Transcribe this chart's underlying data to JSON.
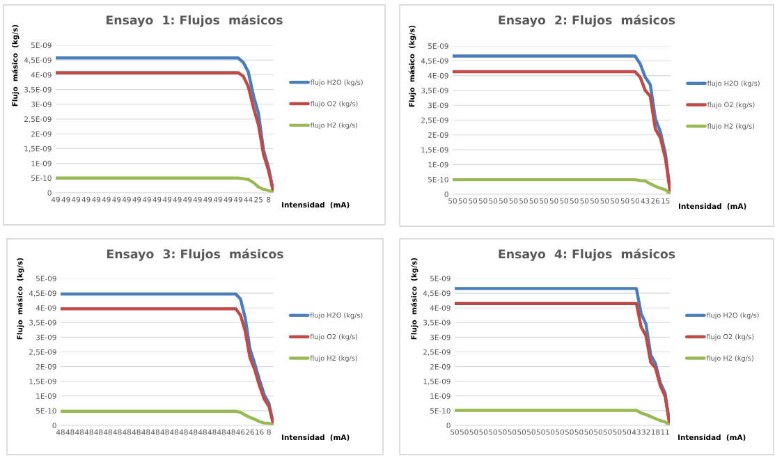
{
  "chart_data": [
    {
      "type": "line",
      "title": "Ensayo  1: Flujos  másicos",
      "xlabel": "Intensidad  (mA)",
      "ylabel": "Flujo  másico  (kg/s)",
      "grid": "y",
      "legend": "right",
      "ylim": [
        0,
        5e-09
      ],
      "yticks": [
        0,
        {
          "value": 5e-10,
          "label": "5E-10"
        },
        {
          "value": 1e-09,
          "label": "1E-09"
        },
        {
          "value": 1.5e-09,
          "label": "1,5E-09"
        },
        {
          "value": 2e-09,
          "label": "2E-09"
        },
        {
          "value": 2.5e-09,
          "label": "2,5E-09"
        },
        {
          "value": 3e-09,
          "label": "3E-09"
        },
        {
          "value": 3.5e-09,
          "label": "3,5E-09"
        },
        {
          "value": 4e-09,
          "label": "4E-09"
        },
        {
          "value": 4.5e-09,
          "label": "4,5E-09"
        },
        {
          "value": 5e-09,
          "label": "5E-09"
        }
      ],
      "categories": [
        "49",
        null,
        "49",
        null,
        "49",
        null,
        "49",
        null,
        "49",
        null,
        "49",
        null,
        "49",
        null,
        "49",
        null,
        "49",
        null,
        "49",
        null,
        "49",
        null,
        "49",
        null,
        "49",
        null,
        "49",
        null,
        "49",
        null,
        "49",
        null,
        "49",
        null,
        "49",
        null,
        "49",
        null,
        "44",
        null,
        "25",
        null,
        "8",
        null
      ],
      "series": [
        {
          "name": "flujo H2O (kg/s)",
          "color": "#4a7ebb",
          "values": [
            4.57e-09,
            4.57e-09,
            4.57e-09,
            4.57e-09,
            4.57e-09,
            4.57e-09,
            4.57e-09,
            4.57e-09,
            4.57e-09,
            4.57e-09,
            4.57e-09,
            4.57e-09,
            4.57e-09,
            4.57e-09,
            4.57e-09,
            4.57e-09,
            4.57e-09,
            4.57e-09,
            4.57e-09,
            4.57e-09,
            4.57e-09,
            4.57e-09,
            4.57e-09,
            4.57e-09,
            4.57e-09,
            4.57e-09,
            4.57e-09,
            4.57e-09,
            4.57e-09,
            4.57e-09,
            4.57e-09,
            4.57e-09,
            4.57e-09,
            4.57e-09,
            4.57e-09,
            4.57e-09,
            4.57e-09,
            4.42e-09,
            4.1e-09,
            3.3e-09,
            2.7e-09,
            1.45e-09,
            8.5e-10,
            0
          ]
        },
        {
          "name": "flujo O2 (kg/s)",
          "color": "#be4b48",
          "values": [
            4.07e-09,
            4.07e-09,
            4.07e-09,
            4.07e-09,
            4.07e-09,
            4.07e-09,
            4.07e-09,
            4.07e-09,
            4.07e-09,
            4.07e-09,
            4.07e-09,
            4.07e-09,
            4.07e-09,
            4.07e-09,
            4.07e-09,
            4.07e-09,
            4.07e-09,
            4.07e-09,
            4.07e-09,
            4.07e-09,
            4.07e-09,
            4.07e-09,
            4.07e-09,
            4.07e-09,
            4.07e-09,
            4.07e-09,
            4.07e-09,
            4.07e-09,
            4.07e-09,
            4.07e-09,
            4.07e-09,
            4.07e-09,
            4.07e-09,
            4.07e-09,
            4.07e-09,
            4.07e-09,
            4.07e-09,
            3.95e-09,
            3.6e-09,
            2.9e-09,
            2.3e-09,
            1.3e-09,
            7.5e-10,
            0
          ]
        },
        {
          "name": "flujo H2 (kg/s)",
          "color": "#98b954",
          "values": [
            5e-10,
            5e-10,
            5e-10,
            5e-10,
            5e-10,
            5e-10,
            5e-10,
            5e-10,
            5e-10,
            5e-10,
            5e-10,
            5e-10,
            5e-10,
            5e-10,
            5e-10,
            5e-10,
            5e-10,
            5e-10,
            5e-10,
            5e-10,
            5e-10,
            5e-10,
            5e-10,
            5e-10,
            5e-10,
            5e-10,
            5e-10,
            5e-10,
            5e-10,
            5e-10,
            5e-10,
            5e-10,
            5e-10,
            5e-10,
            5e-10,
            5e-10,
            5e-10,
            4.8e-10,
            4.5e-10,
            3.5e-10,
            2e-10,
            1.2e-10,
            8e-11,
            0
          ]
        }
      ]
    },
    {
      "type": "line",
      "title": "Ensayo  2: Flujos  másicos",
      "xlabel": "Intensidad  (mA)",
      "ylabel": "Flujo  másico  (kg/s)",
      "grid": "y",
      "legend": "right",
      "ylim": [
        0,
        5e-09
      ],
      "yticks": [
        0,
        {
          "value": 5e-10,
          "label": "5E-10"
        },
        {
          "value": 1e-09,
          "label": "1E-09"
        },
        {
          "value": 1.5e-09,
          "label": "1,5E-09"
        },
        {
          "value": 2e-09,
          "label": "2E-09"
        },
        {
          "value": 2.5e-09,
          "label": "2,5E-09"
        },
        {
          "value": 3e-09,
          "label": "3E-09"
        },
        {
          "value": 3.5e-09,
          "label": "3,5E-09"
        },
        {
          "value": 4e-09,
          "label": "4E-09"
        },
        {
          "value": 4.5e-09,
          "label": "4,5E-09"
        },
        {
          "value": 5e-09,
          "label": "5E-09"
        }
      ],
      "categories": [
        "50",
        null,
        "50",
        null,
        "50",
        null,
        "50",
        null,
        "50",
        null,
        "50",
        null,
        "50",
        null,
        "50",
        null,
        "50",
        null,
        "50",
        null,
        "50",
        null,
        "50",
        null,
        "50",
        null,
        "50",
        null,
        "50",
        null,
        "50",
        null,
        "50",
        null,
        "50",
        null,
        "50",
        null,
        "43",
        null,
        "26",
        null,
        "15",
        null
      ],
      "series": [
        {
          "name": "flujo H2O (kg/s)",
          "color": "#4a7ebb",
          "values": [
            4.66e-09,
            4.66e-09,
            4.66e-09,
            4.66e-09,
            4.66e-09,
            4.66e-09,
            4.66e-09,
            4.66e-09,
            4.66e-09,
            4.66e-09,
            4.66e-09,
            4.66e-09,
            4.66e-09,
            4.66e-09,
            4.66e-09,
            4.66e-09,
            4.66e-09,
            4.66e-09,
            4.66e-09,
            4.66e-09,
            4.66e-09,
            4.66e-09,
            4.66e-09,
            4.66e-09,
            4.66e-09,
            4.66e-09,
            4.66e-09,
            4.66e-09,
            4.66e-09,
            4.66e-09,
            4.66e-09,
            4.66e-09,
            4.66e-09,
            4.66e-09,
            4.66e-09,
            4.66e-09,
            4.66e-09,
            4.4e-09,
            3.95e-09,
            3.7e-09,
            2.55e-09,
            2.1e-09,
            1.35e-09,
            0
          ]
        },
        {
          "name": "flujo O2 (kg/s)",
          "color": "#be4b48",
          "values": [
            4.13e-09,
            4.13e-09,
            4.13e-09,
            4.13e-09,
            4.13e-09,
            4.13e-09,
            4.13e-09,
            4.13e-09,
            4.13e-09,
            4.13e-09,
            4.13e-09,
            4.13e-09,
            4.13e-09,
            4.13e-09,
            4.13e-09,
            4.13e-09,
            4.13e-09,
            4.13e-09,
            4.13e-09,
            4.13e-09,
            4.13e-09,
            4.13e-09,
            4.13e-09,
            4.13e-09,
            4.13e-09,
            4.13e-09,
            4.13e-09,
            4.13e-09,
            4.13e-09,
            4.13e-09,
            4.13e-09,
            4.13e-09,
            4.13e-09,
            4.13e-09,
            4.13e-09,
            4.13e-09,
            4.13e-09,
            3.95e-09,
            3.5e-09,
            3.3e-09,
            2.2e-09,
            1.9e-09,
            1.2e-09,
            0
          ]
        },
        {
          "name": "flujo H2 (kg/s)",
          "color": "#98b954",
          "values": [
            4.9e-10,
            4.9e-10,
            4.9e-10,
            4.9e-10,
            4.9e-10,
            4.9e-10,
            4.9e-10,
            4.9e-10,
            4.9e-10,
            4.9e-10,
            4.9e-10,
            4.9e-10,
            4.9e-10,
            4.9e-10,
            4.9e-10,
            4.9e-10,
            4.9e-10,
            4.9e-10,
            4.9e-10,
            4.9e-10,
            4.9e-10,
            4.9e-10,
            4.9e-10,
            4.9e-10,
            4.9e-10,
            4.9e-10,
            4.9e-10,
            4.9e-10,
            4.9e-10,
            4.9e-10,
            4.9e-10,
            4.9e-10,
            4.9e-10,
            4.9e-10,
            4.9e-10,
            4.9e-10,
            4.9e-10,
            4.6e-10,
            4.5e-10,
            3.5e-10,
            2.7e-10,
            2e-10,
            1.5e-10,
            0
          ]
        }
      ]
    },
    {
      "type": "line",
      "title": "Ensayo  3: Flujos  másicos",
      "xlabel": "Intensidad  (mA)",
      "ylabel": "Flujo  másico  (kg/s)",
      "grid": "y",
      "legend": "right",
      "ylim": [
        0,
        5e-09
      ],
      "yticks": [
        0,
        {
          "value": 5e-10,
          "label": "5E-10"
        },
        {
          "value": 1e-09,
          "label": "1E-09"
        },
        {
          "value": 1.5e-09,
          "label": "1,5E-09"
        },
        {
          "value": 2e-09,
          "label": "2E-09"
        },
        {
          "value": 2.5e-09,
          "label": "2,5E-09"
        },
        {
          "value": 3e-09,
          "label": "3E-09"
        },
        {
          "value": 3.5e-09,
          "label": "3,5E-09"
        },
        {
          "value": 4e-09,
          "label": "4E-09"
        },
        {
          "value": 4.5e-09,
          "label": "4,5E-09"
        },
        {
          "value": 5e-09,
          "label": "5E-09"
        }
      ],
      "categories": [
        "48",
        null,
        "48",
        null,
        "48",
        null,
        "48",
        null,
        "48",
        null,
        "48",
        null,
        "48",
        null,
        "48",
        null,
        "48",
        null,
        "48",
        null,
        "48",
        null,
        "48",
        null,
        "48",
        null,
        "48",
        null,
        "48",
        null,
        "48",
        null,
        "48",
        null,
        "48",
        null,
        "48",
        null,
        "46",
        null,
        "26",
        null,
        "16",
        null,
        "8",
        null
      ],
      "series": [
        {
          "name": "flujo H2O (kg/s)",
          "color": "#4a7ebb",
          "values": [
            4.47e-09,
            4.47e-09,
            4.47e-09,
            4.47e-09,
            4.47e-09,
            4.47e-09,
            4.47e-09,
            4.47e-09,
            4.47e-09,
            4.47e-09,
            4.47e-09,
            4.47e-09,
            4.47e-09,
            4.47e-09,
            4.47e-09,
            4.47e-09,
            4.47e-09,
            4.47e-09,
            4.47e-09,
            4.47e-09,
            4.47e-09,
            4.47e-09,
            4.47e-09,
            4.47e-09,
            4.47e-09,
            4.47e-09,
            4.47e-09,
            4.47e-09,
            4.47e-09,
            4.47e-09,
            4.47e-09,
            4.47e-09,
            4.47e-09,
            4.47e-09,
            4.47e-09,
            4.47e-09,
            4.47e-09,
            4.47e-09,
            4.3e-09,
            3.65e-09,
            2.6e-09,
            2.1e-09,
            1.55e-09,
            1.05e-09,
            7.5e-10,
            0
          ]
        },
        {
          "name": "flujo O2 (kg/s)",
          "color": "#be4b48",
          "values": [
            3.97e-09,
            3.97e-09,
            3.97e-09,
            3.97e-09,
            3.97e-09,
            3.97e-09,
            3.97e-09,
            3.97e-09,
            3.97e-09,
            3.97e-09,
            3.97e-09,
            3.97e-09,
            3.97e-09,
            3.97e-09,
            3.97e-09,
            3.97e-09,
            3.97e-09,
            3.97e-09,
            3.97e-09,
            3.97e-09,
            3.97e-09,
            3.97e-09,
            3.97e-09,
            3.97e-09,
            3.97e-09,
            3.97e-09,
            3.97e-09,
            3.97e-09,
            3.97e-09,
            3.97e-09,
            3.97e-09,
            3.97e-09,
            3.97e-09,
            3.97e-09,
            3.97e-09,
            3.97e-09,
            3.97e-09,
            3.97e-09,
            3.75e-09,
            3.2e-09,
            2.3e-09,
            1.9e-09,
            1.35e-09,
            9e-10,
            6.5e-10,
            0
          ]
        },
        {
          "name": "flujo H2 (kg/s)",
          "color": "#98b954",
          "values": [
            4.8e-10,
            4.8e-10,
            4.8e-10,
            4.8e-10,
            4.8e-10,
            4.8e-10,
            4.8e-10,
            4.8e-10,
            4.8e-10,
            4.8e-10,
            4.8e-10,
            4.8e-10,
            4.8e-10,
            4.8e-10,
            4.8e-10,
            4.8e-10,
            4.8e-10,
            4.8e-10,
            4.8e-10,
            4.8e-10,
            4.8e-10,
            4.8e-10,
            4.8e-10,
            4.8e-10,
            4.8e-10,
            4.8e-10,
            4.8e-10,
            4.8e-10,
            4.8e-10,
            4.8e-10,
            4.8e-10,
            4.8e-10,
            4.8e-10,
            4.8e-10,
            4.8e-10,
            4.8e-10,
            4.8e-10,
            4.8e-10,
            4.4e-10,
            3.5e-10,
            2.7e-10,
            2.1e-10,
            1.3e-10,
            8e-11,
            7e-11,
            0
          ]
        }
      ]
    },
    {
      "type": "line",
      "title": "Ensayo  4: Flujos  másicos",
      "xlabel": "Intensidad  (mA)",
      "ylabel": "Flujo  másico  (kg/s)",
      "grid": "y",
      "legend": "right",
      "ylim": [
        0,
        5e-09
      ],
      "yticks": [
        0,
        {
          "value": 5e-10,
          "label": "5E-10"
        },
        {
          "value": 1e-09,
          "label": "1E-09"
        },
        {
          "value": 1.5e-09,
          "label": "1,5E-09"
        },
        {
          "value": 2e-09,
          "label": "2E-09"
        },
        {
          "value": 2.5e-09,
          "label": "2,5E-09"
        },
        {
          "value": 3e-09,
          "label": "3E-09"
        },
        {
          "value": 3.5e-09,
          "label": "3,5E-09"
        },
        {
          "value": 4e-09,
          "label": "4E-09"
        },
        {
          "value": 4.5e-09,
          "label": "4,5E-09"
        },
        {
          "value": 5e-09,
          "label": "5E-09"
        }
      ],
      "categories": [
        "50",
        null,
        "50",
        null,
        "50",
        null,
        "50",
        null,
        "50",
        null,
        "50",
        null,
        "50",
        null,
        "50",
        null,
        "50",
        null,
        "50",
        null,
        "50",
        null,
        "50",
        null,
        "50",
        null,
        "50",
        null,
        "50",
        null,
        "50",
        null,
        "50",
        null,
        "50",
        null,
        "50",
        null,
        "43",
        null,
        "32",
        null,
        "18",
        null,
        "11",
        null
      ],
      "series": [
        {
          "name": "flujo H2O (kg/s)",
          "color": "#4a7ebb",
          "values": [
            4.66e-09,
            4.66e-09,
            4.66e-09,
            4.66e-09,
            4.66e-09,
            4.66e-09,
            4.66e-09,
            4.66e-09,
            4.66e-09,
            4.66e-09,
            4.66e-09,
            4.66e-09,
            4.66e-09,
            4.66e-09,
            4.66e-09,
            4.66e-09,
            4.66e-09,
            4.66e-09,
            4.66e-09,
            4.66e-09,
            4.66e-09,
            4.66e-09,
            4.66e-09,
            4.66e-09,
            4.66e-09,
            4.66e-09,
            4.66e-09,
            4.66e-09,
            4.66e-09,
            4.66e-09,
            4.66e-09,
            4.66e-09,
            4.66e-09,
            4.66e-09,
            4.66e-09,
            4.66e-09,
            4.66e-09,
            4.66e-09,
            4.66e-09,
            3.8e-09,
            3.45e-09,
            2.4e-09,
            2.1e-09,
            1.45e-09,
            1.1e-09,
            0
          ]
        },
        {
          "name": "flujo O2 (kg/s)",
          "color": "#be4b48",
          "values": [
            4.15e-09,
            4.15e-09,
            4.15e-09,
            4.15e-09,
            4.15e-09,
            4.15e-09,
            4.15e-09,
            4.15e-09,
            4.15e-09,
            4.15e-09,
            4.15e-09,
            4.15e-09,
            4.15e-09,
            4.15e-09,
            4.15e-09,
            4.15e-09,
            4.15e-09,
            4.15e-09,
            4.15e-09,
            4.15e-09,
            4.15e-09,
            4.15e-09,
            4.15e-09,
            4.15e-09,
            4.15e-09,
            4.15e-09,
            4.15e-09,
            4.15e-09,
            4.15e-09,
            4.15e-09,
            4.15e-09,
            4.15e-09,
            4.15e-09,
            4.15e-09,
            4.15e-09,
            4.15e-09,
            4.15e-09,
            4.15e-09,
            4.15e-09,
            3.35e-09,
            3.05e-09,
            2.15e-09,
            1.95e-09,
            1.35e-09,
            1e-09,
            0
          ]
        },
        {
          "name": "flujo H2 (kg/s)",
          "color": "#98b954",
          "values": [
            5.1e-10,
            5.1e-10,
            5.1e-10,
            5.1e-10,
            5.1e-10,
            5.1e-10,
            5.1e-10,
            5.1e-10,
            5.1e-10,
            5.1e-10,
            5.1e-10,
            5.1e-10,
            5.1e-10,
            5.1e-10,
            5.1e-10,
            5.1e-10,
            5.1e-10,
            5.1e-10,
            5.1e-10,
            5.1e-10,
            5.1e-10,
            5.1e-10,
            5.1e-10,
            5.1e-10,
            5.1e-10,
            5.1e-10,
            5.1e-10,
            5.1e-10,
            5.1e-10,
            5.1e-10,
            5.1e-10,
            5.1e-10,
            5.1e-10,
            5.1e-10,
            5.1e-10,
            5.1e-10,
            5.1e-10,
            5.1e-10,
            5.1e-10,
            4.2e-10,
            3.7e-10,
            3e-10,
            2.3e-10,
            1.6e-10,
            1.2e-10,
            0
          ]
        }
      ]
    }
  ]
}
